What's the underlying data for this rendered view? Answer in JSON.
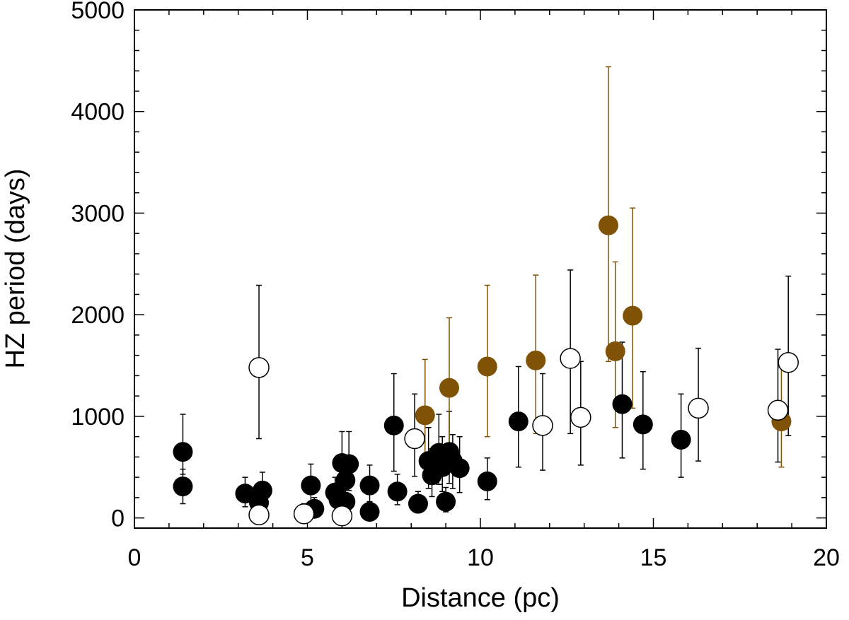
{
  "chart_data": {
    "type": "scatter",
    "xlabel": "Distance (pc)",
    "ylabel": "HZ period (days)",
    "xlim": [
      0,
      20
    ],
    "ylim": [
      -100,
      5000
    ],
    "x_ticks": [
      0,
      5,
      10,
      15,
      20
    ],
    "y_ticks": [
      0,
      1000,
      2000,
      3000,
      4000,
      5000
    ],
    "grid": false,
    "colors": {
      "filled_black": "#000000",
      "filled_brown": "#7f5206",
      "open": "#000000"
    },
    "series": [
      {
        "style": "filled-black",
        "points": [
          {
            "x": 1.4,
            "y": 650,
            "lo": 430,
            "hi": 1020
          },
          {
            "x": 1.4,
            "y": 310,
            "lo": 140,
            "hi": 480
          },
          {
            "x": 3.2,
            "y": 240,
            "lo": 110,
            "hi": 400
          },
          {
            "x": 3.6,
            "y": 150,
            "lo": 50,
            "hi": 270
          },
          {
            "x": 3.7,
            "y": 270,
            "lo": 120,
            "hi": 450
          },
          {
            "x": 5.1,
            "y": 320,
            "lo": 150,
            "hi": 530
          },
          {
            "x": 5.2,
            "y": 90,
            "lo": 20,
            "hi": 200
          },
          {
            "x": 5.8,
            "y": 250,
            "lo": 120,
            "hi": 400
          },
          {
            "x": 5.9,
            "y": 180,
            "lo": 70,
            "hi": 320
          },
          {
            "x": 6.0,
            "y": 540,
            "lo": 280,
            "hi": 850
          },
          {
            "x": 6.1,
            "y": 160,
            "lo": 60,
            "hi": 300
          },
          {
            "x": 6.1,
            "y": 370,
            "lo": 190,
            "hi": 580
          },
          {
            "x": 6.2,
            "y": 530,
            "lo": 270,
            "hi": 850
          },
          {
            "x": 6.8,
            "y": 320,
            "lo": 160,
            "hi": 520
          },
          {
            "x": 6.8,
            "y": 60,
            "lo": 10,
            "hi": 160
          },
          {
            "x": 7.5,
            "y": 910,
            "lo": 460,
            "hi": 1420
          },
          {
            "x": 7.6,
            "y": 260,
            "lo": 130,
            "hi": 430
          },
          {
            "x": 8.2,
            "y": 140,
            "lo": 50,
            "hi": 260
          },
          {
            "x": 8.5,
            "y": 560,
            "lo": 290,
            "hi": 890
          },
          {
            "x": 8.6,
            "y": 420,
            "lo": 210,
            "hi": 680
          },
          {
            "x": 8.8,
            "y": 640,
            "lo": 330,
            "hi": 1020
          },
          {
            "x": 8.9,
            "y": 500,
            "lo": 260,
            "hi": 800
          },
          {
            "x": 9.0,
            "y": 160,
            "lo": 60,
            "hi": 300
          },
          {
            "x": 9.1,
            "y": 650,
            "lo": 340,
            "hi": 1050
          },
          {
            "x": 9.2,
            "y": 560,
            "lo": 290,
            "hi": 820
          },
          {
            "x": 9.4,
            "y": 490,
            "lo": 250,
            "hi": 800
          },
          {
            "x": 10.2,
            "y": 360,
            "lo": 180,
            "hi": 590
          },
          {
            "x": 11.1,
            "y": 950,
            "lo": 500,
            "hi": 1490
          },
          {
            "x": 14.1,
            "y": 1120,
            "lo": 590,
            "hi": 1730
          },
          {
            "x": 14.7,
            "y": 920,
            "lo": 480,
            "hi": 1440
          },
          {
            "x": 15.8,
            "y": 770,
            "lo": 400,
            "hi": 1220
          }
        ]
      },
      {
        "style": "filled-brown",
        "points": [
          {
            "x": 8.4,
            "y": 1010,
            "lo": 540,
            "hi": 1560
          },
          {
            "x": 9.1,
            "y": 1280,
            "lo": 680,
            "hi": 1970
          },
          {
            "x": 10.2,
            "y": 1490,
            "lo": 800,
            "hi": 2290
          },
          {
            "x": 11.6,
            "y": 1550,
            "lo": 830,
            "hi": 2390
          },
          {
            "x": 13.7,
            "y": 2880,
            "lo": 1540,
            "hi": 4440
          },
          {
            "x": 13.9,
            "y": 1640,
            "lo": 890,
            "hi": 2520
          },
          {
            "x": 14.4,
            "y": 1990,
            "lo": 1080,
            "hi": 3050
          },
          {
            "x": 18.7,
            "y": 950,
            "lo": 500,
            "hi": 1480
          }
        ]
      },
      {
        "style": "open",
        "points": [
          {
            "x": 3.6,
            "y": 1480,
            "lo": 780,
            "hi": 2290
          },
          {
            "x": 3.6,
            "y": 30,
            "lo": -20,
            "hi": 120
          },
          {
            "x": 4.9,
            "y": 40,
            "lo": -10,
            "hi": 140
          },
          {
            "x": 6.0,
            "y": 20,
            "lo": -20,
            "hi": 100
          },
          {
            "x": 8.1,
            "y": 780,
            "lo": 410,
            "hi": 1220
          },
          {
            "x": 11.8,
            "y": 910,
            "lo": 470,
            "hi": 1420
          },
          {
            "x": 12.6,
            "y": 1570,
            "lo": 830,
            "hi": 2440
          },
          {
            "x": 12.9,
            "y": 990,
            "lo": 520,
            "hi": 1540
          },
          {
            "x": 16.3,
            "y": 1080,
            "lo": 560,
            "hi": 1670
          },
          {
            "x": 18.6,
            "y": 1060,
            "lo": 550,
            "hi": 1660
          },
          {
            "x": 18.9,
            "y": 1530,
            "lo": 810,
            "hi": 2380
          }
        ]
      }
    ]
  }
}
